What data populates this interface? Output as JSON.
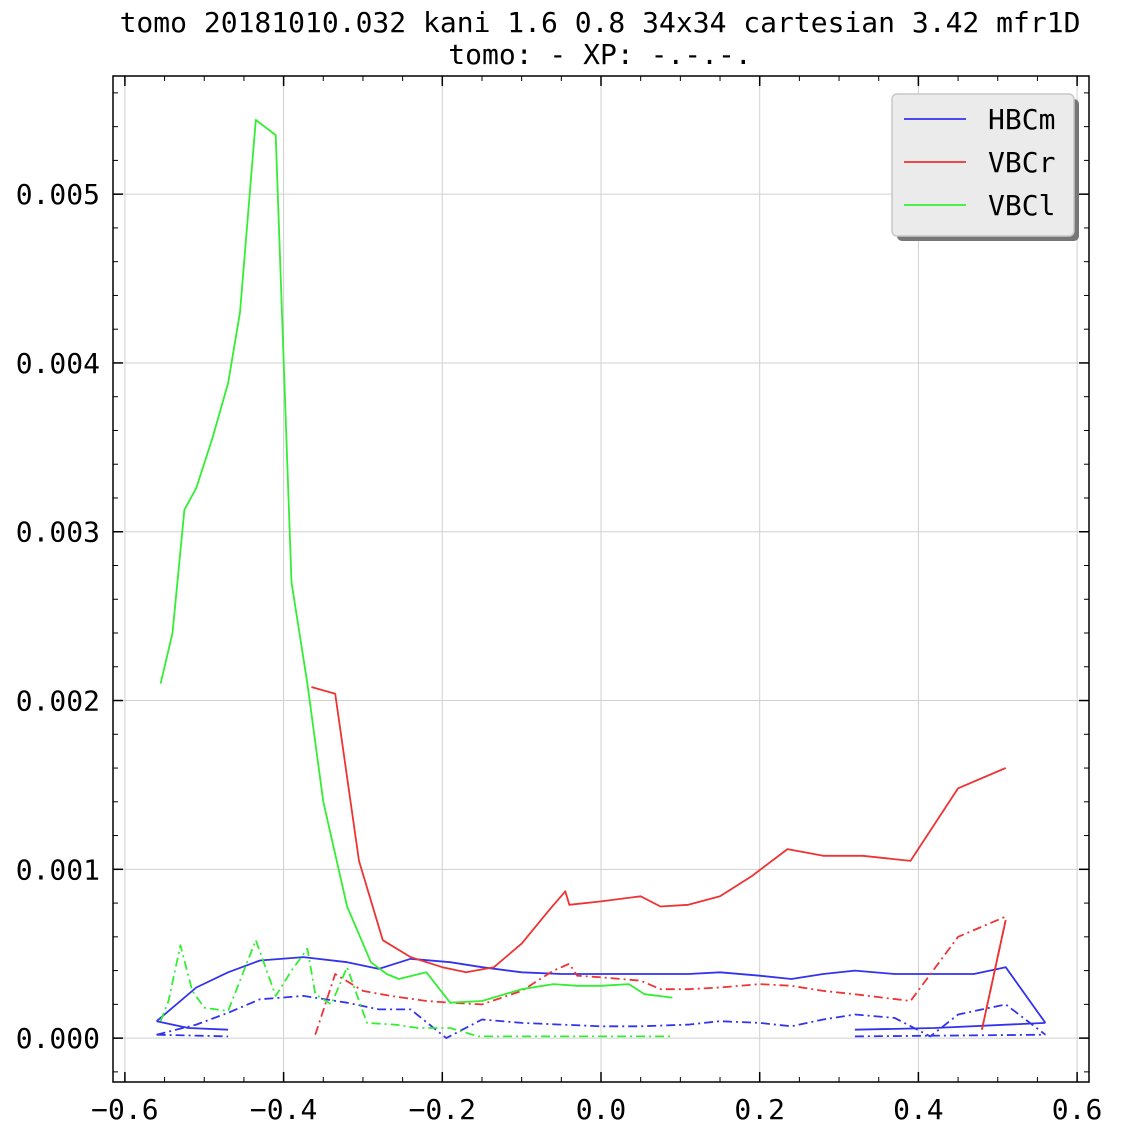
{
  "chart_data": {
    "type": "line",
    "title": "tomo 20181010.032 kani 1.6 0.8 34x34 cartesian 3.42 mfr1D",
    "subtitle": "tomo: -   XP: -.-.-.",
    "xlabel": "",
    "ylabel": "",
    "xlim": [
      -0.615,
      0.615
    ],
    "ylim": [
      -0.00026,
      0.0057
    ],
    "x_ticks": [
      "−0.6",
      "−0.4",
      "−0.2",
      "0.0",
      "0.2",
      "0.4",
      "0.6"
    ],
    "x_tick_values": [
      -0.6,
      -0.4,
      -0.2,
      0.0,
      0.2,
      0.4,
      0.6
    ],
    "y_ticks": [
      "0.000",
      "0.001",
      "0.002",
      "0.003",
      "0.004",
      "0.005"
    ],
    "y_tick_values": [
      0.0,
      0.001,
      0.002,
      0.003,
      0.004,
      0.005
    ],
    "grid": true,
    "legend_position": "top-right",
    "series": [
      {
        "name": "HBCm",
        "color": "#3333ee",
        "style": "solid",
        "points": [
          [
            -0.56,
            0.0001
          ],
          [
            -0.51,
            0.0003
          ],
          [
            -0.47,
            0.00039
          ],
          [
            -0.43,
            0.00046
          ],
          [
            -0.375,
            0.00048
          ],
          [
            -0.32,
            0.00045
          ],
          [
            -0.28,
            0.00041
          ],
          [
            -0.24,
            0.00047
          ],
          [
            -0.19,
            0.00045
          ],
          [
            -0.15,
            0.00042
          ],
          [
            -0.1,
            0.00039
          ],
          [
            -0.05,
            0.00038
          ],
          [
            0.0,
            0.00038
          ],
          [
            0.05,
            0.00038
          ],
          [
            0.11,
            0.00038
          ],
          [
            0.15,
            0.00039
          ],
          [
            0.2,
            0.00037
          ],
          [
            0.24,
            0.00035
          ],
          [
            0.28,
            0.00038
          ],
          [
            0.32,
            0.0004
          ],
          [
            0.37,
            0.00038
          ],
          [
            0.42,
            0.00038
          ],
          [
            0.47,
            0.00038
          ],
          [
            0.51,
            0.00042
          ],
          [
            0.56,
            9e-05
          ]
        ]
      },
      {
        "name": "",
        "color": "#3333ee",
        "style": "solid",
        "points": [
          [
            -0.56,
            0.0001
          ],
          [
            -0.52,
            6e-05
          ],
          [
            -0.47,
            5e-05
          ]
        ]
      },
      {
        "name": "",
        "color": "#3333ee",
        "style": "solid",
        "points": [
          [
            0.32,
            5e-05
          ],
          [
            0.42,
            6e-05
          ],
          [
            0.56,
            9e-05
          ]
        ]
      },
      {
        "name": "",
        "color": "#3333ee",
        "style": "dashdot",
        "points": [
          [
            -0.56,
            2e-05
          ],
          [
            -0.51,
            8e-05
          ],
          [
            -0.47,
            0.00015
          ],
          [
            -0.43,
            0.00023
          ],
          [
            -0.375,
            0.00025
          ],
          [
            -0.32,
            0.00021
          ],
          [
            -0.28,
            0.00017
          ],
          [
            -0.24,
            0.00017
          ],
          [
            -0.195,
            0.0
          ],
          [
            -0.15,
            0.00011
          ],
          [
            -0.1,
            9e-05
          ],
          [
            -0.05,
            8e-05
          ],
          [
            0.0,
            7e-05
          ],
          [
            0.05,
            7e-05
          ],
          [
            0.11,
            8e-05
          ],
          [
            0.15,
            0.0001
          ],
          [
            0.2,
            9e-05
          ],
          [
            0.24,
            7e-05
          ],
          [
            0.28,
            0.00011
          ],
          [
            0.32,
            0.00014
          ],
          [
            0.37,
            0.00012
          ],
          [
            0.415,
            1e-05
          ],
          [
            0.45,
            0.00014
          ],
          [
            0.51,
            0.0002
          ],
          [
            0.56,
            2e-05
          ]
        ]
      },
      {
        "name": "",
        "color": "#3333ee",
        "style": "dashdot",
        "points": [
          [
            -0.56,
            2e-05
          ],
          [
            -0.47,
            1e-05
          ]
        ]
      },
      {
        "name": "",
        "color": "#3333ee",
        "style": "dashdot",
        "points": [
          [
            0.32,
            1e-05
          ],
          [
            0.56,
            2e-05
          ]
        ]
      },
      {
        "name": "VBCr",
        "color": "#ee3333",
        "style": "solid",
        "points": [
          [
            -0.365,
            0.00208
          ],
          [
            -0.335,
            0.00204
          ],
          [
            -0.305,
            0.00105
          ],
          [
            -0.275,
            0.00058
          ],
          [
            -0.24,
            0.00048
          ],
          [
            -0.2,
            0.00042
          ],
          [
            -0.17,
            0.00039
          ],
          [
            -0.135,
            0.00042
          ],
          [
            -0.1,
            0.00056
          ],
          [
            -0.065,
            0.00076
          ],
          [
            -0.045,
            0.00087
          ],
          [
            -0.04,
            0.00079
          ],
          [
            0.0,
            0.00081
          ],
          [
            0.05,
            0.00084
          ],
          [
            0.075,
            0.00078
          ],
          [
            0.11,
            0.00079
          ],
          [
            0.15,
            0.00084
          ],
          [
            0.19,
            0.00096
          ],
          [
            0.235,
            0.00112
          ],
          [
            0.28,
            0.00108
          ],
          [
            0.33,
            0.00108
          ],
          [
            0.39,
            0.00105
          ],
          [
            0.45,
            0.00148
          ],
          [
            0.51,
            0.0016
          ]
        ]
      },
      {
        "name": "",
        "color": "#ee3333",
        "style": "solid",
        "points": [
          [
            0.48,
            5e-05
          ],
          [
            0.51,
            0.0007
          ]
        ]
      },
      {
        "name": "",
        "color": "#ee3333",
        "style": "dashdot",
        "points": [
          [
            -0.36,
            2e-05
          ],
          [
            -0.335,
            0.00038
          ],
          [
            -0.3,
            0.00028
          ],
          [
            -0.265,
            0.00025
          ],
          [
            -0.22,
            0.00022
          ],
          [
            -0.19,
            0.00021
          ],
          [
            -0.15,
            0.0002
          ],
          [
            -0.1,
            0.00028
          ],
          [
            -0.06,
            0.0004
          ],
          [
            -0.04,
            0.00044
          ],
          [
            -0.03,
            0.00037
          ],
          [
            0.0,
            0.00036
          ],
          [
            0.05,
            0.00034
          ],
          [
            0.075,
            0.00029
          ],
          [
            0.11,
            0.00029
          ],
          [
            0.15,
            0.0003
          ],
          [
            0.2,
            0.00032
          ],
          [
            0.24,
            0.00031
          ],
          [
            0.28,
            0.00028
          ],
          [
            0.32,
            0.00026
          ],
          [
            0.39,
            0.00022
          ],
          [
            0.45,
            0.0006
          ],
          [
            0.51,
            0.00072
          ]
        ]
      },
      {
        "name": "",
        "color": "#ee3333",
        "style": "dashdot",
        "points": [
          [
            0.48,
            5e-05
          ],
          [
            0.51,
            0.0007
          ]
        ]
      },
      {
        "name": "VBCl",
        "color": "#33ee33",
        "style": "solid",
        "points": [
          [
            -0.555,
            0.0021
          ],
          [
            -0.54,
            0.0024
          ],
          [
            -0.525,
            0.00313
          ],
          [
            -0.51,
            0.00326
          ],
          [
            -0.49,
            0.00355
          ],
          [
            -0.47,
            0.00388
          ],
          [
            -0.455,
            0.0043
          ],
          [
            -0.435,
            0.00544
          ],
          [
            -0.41,
            0.00535
          ],
          [
            -0.39,
            0.0027
          ],
          [
            -0.37,
            0.0021
          ],
          [
            -0.35,
            0.0014
          ],
          [
            -0.32,
            0.00078
          ],
          [
            -0.29,
            0.00045
          ],
          [
            -0.27,
            0.00038
          ],
          [
            -0.255,
            0.00035
          ],
          [
            -0.22,
            0.00039
          ],
          [
            -0.19,
            0.00021
          ],
          [
            -0.15,
            0.00022
          ],
          [
            -0.1,
            0.00029
          ],
          [
            -0.06,
            0.00032
          ],
          [
            -0.03,
            0.00031
          ],
          [
            0.0,
            0.00031
          ],
          [
            0.035,
            0.00032
          ],
          [
            0.055,
            0.00026
          ],
          [
            0.09,
            0.00024
          ]
        ]
      },
      {
        "name": "",
        "color": "#33ee33",
        "style": "dashdot",
        "points": [
          [
            -0.555,
            0.0001
          ],
          [
            -0.545,
            0.00022
          ],
          [
            -0.53,
            0.00055
          ],
          [
            -0.515,
            0.00028
          ],
          [
            -0.5,
            0.00018
          ],
          [
            -0.47,
            0.00016
          ],
          [
            -0.435,
            0.00058
          ],
          [
            -0.41,
            0.00025
          ],
          [
            -0.39,
            0.0004
          ],
          [
            -0.37,
            0.00053
          ],
          [
            -0.36,
            0.00026
          ],
          [
            -0.34,
            0.0002
          ],
          [
            -0.32,
            0.00042
          ],
          [
            -0.295,
            9e-05
          ],
          [
            -0.26,
            8e-05
          ],
          [
            -0.23,
            6e-05
          ],
          [
            -0.19,
            6e-05
          ],
          [
            -0.155,
            1e-05
          ],
          [
            -0.1,
            1e-05
          ],
          [
            -0.05,
            1e-05
          ],
          [
            0.0,
            1e-05
          ],
          [
            0.05,
            1e-05
          ],
          [
            0.09,
            1e-05
          ]
        ]
      }
    ],
    "legend": [
      {
        "label": "HBCm",
        "color": "#3333ee"
      },
      {
        "label": "VBCr",
        "color": "#ee3333"
      },
      {
        "label": "VBCl",
        "color": "#33ee33"
      }
    ]
  }
}
